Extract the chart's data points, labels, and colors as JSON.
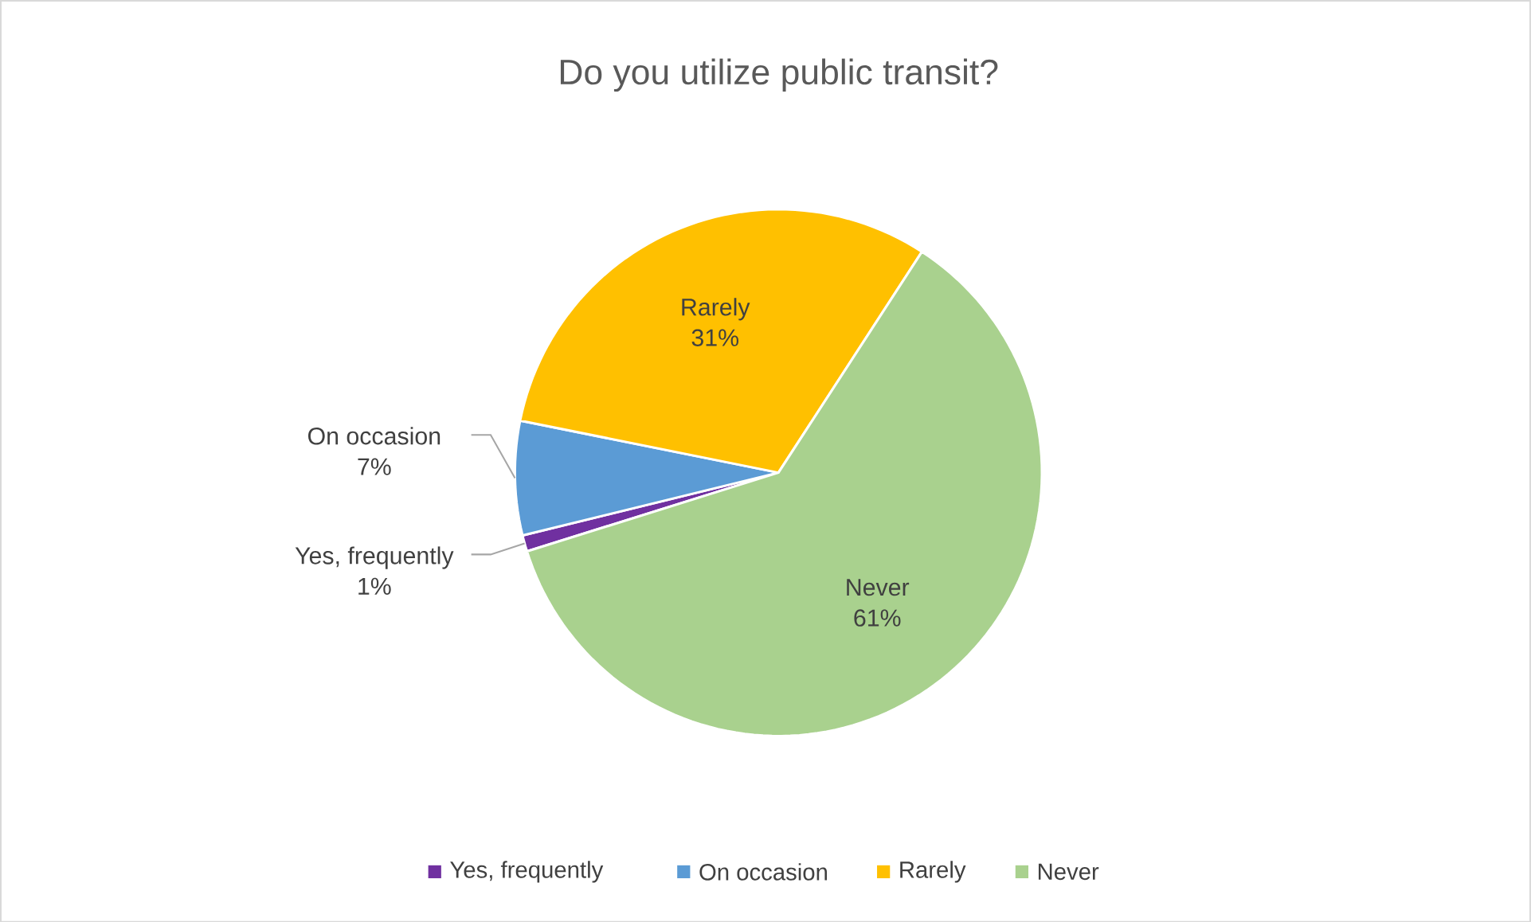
{
  "chart_data": {
    "type": "pie",
    "title": "Do you utilize public transit?",
    "categories": [
      "Yes, frequently",
      "On occasion",
      "Rarely",
      "Never"
    ],
    "values": [
      1,
      7,
      31,
      61
    ],
    "value_labels": [
      "1%",
      "7%",
      "31%",
      "61%"
    ],
    "colors": [
      "#7030a0",
      "#5b9bd5",
      "#ffc000",
      "#a9d18e"
    ],
    "legend": "bottom"
  }
}
